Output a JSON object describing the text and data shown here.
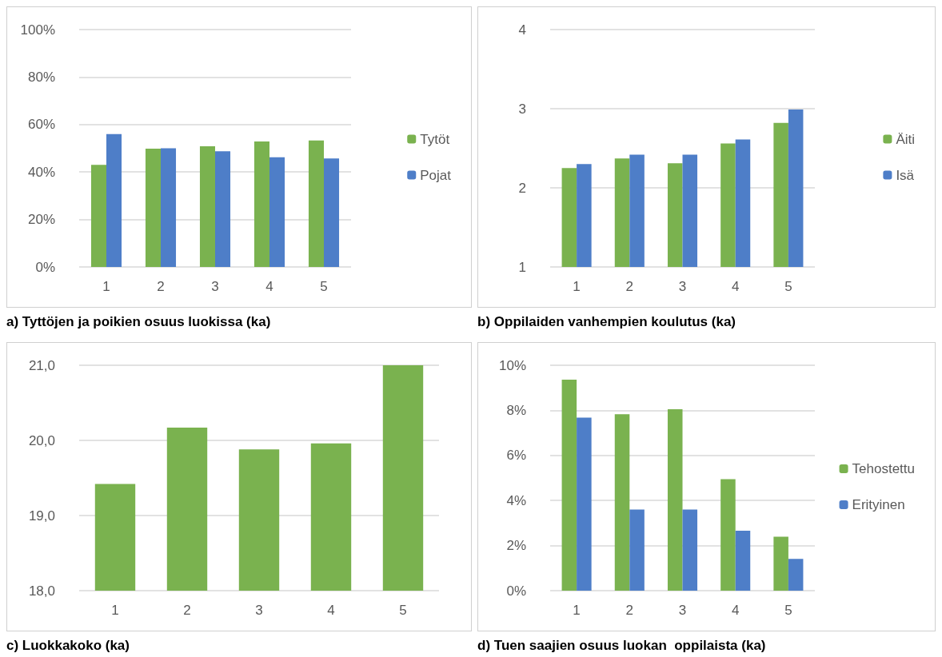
{
  "chart_data": [
    {
      "type": "bar",
      "title": "a) Tyttöjen ja poikien osuus luokissa (ka)",
      "categories": [
        "1",
        "2",
        "3",
        "4",
        "5"
      ],
      "series": [
        {
          "name": "Tytöt",
          "color": "#7ab24f",
          "values": [
            43.0,
            49.8,
            50.8,
            52.9,
            53.3
          ]
        },
        {
          "name": "Pojat",
          "color": "#4e7ec8",
          "values": [
            56.0,
            50.0,
            48.7,
            46.2,
            45.7
          ]
        }
      ],
      "ylim": [
        0,
        100
      ],
      "yticks": [
        {
          "value": 0,
          "label": "0%"
        },
        {
          "value": 20,
          "label": "20%"
        },
        {
          "value": 40,
          "label": "40%"
        },
        {
          "value": 60,
          "label": "60%"
        },
        {
          "value": 80,
          "label": "80%"
        },
        {
          "value": 100,
          "label": "100%"
        }
      ],
      "grid": "y",
      "legend": "right"
    },
    {
      "type": "bar",
      "title": "b) Oppilaiden vanhempien koulutus (ka)",
      "categories": [
        "1",
        "2",
        "3",
        "4",
        "5"
      ],
      "series": [
        {
          "name": "Äiti",
          "color": "#7ab24f",
          "values": [
            2.25,
            2.37,
            2.31,
            2.56,
            2.82
          ]
        },
        {
          "name": "Isä",
          "color": "#4e7ec8",
          "values": [
            2.3,
            2.42,
            2.42,
            2.61,
            2.99
          ]
        }
      ],
      "ylim": [
        1,
        4
      ],
      "yticks": [
        1,
        2,
        3,
        4
      ],
      "grid": "y",
      "legend": "right"
    },
    {
      "type": "bar",
      "title": "c) Luokkakoko (ka)",
      "categories": [
        "1",
        "2",
        "3",
        "4",
        "5"
      ],
      "series": [
        {
          "color": "#7ab24f",
          "values": [
            19.42,
            20.17,
            19.88,
            19.96,
            21.0
          ]
        }
      ],
      "ylim": [
        18,
        21
      ],
      "yticks": [
        {
          "value": 18,
          "label": "18,0"
        },
        {
          "value": 19,
          "label": "19,0"
        },
        {
          "value": 20,
          "label": "20,0"
        },
        {
          "value": 21,
          "label": "21,0"
        }
      ],
      "grid": "y"
    },
    {
      "type": "bar",
      "title": "d) Tuen saajien osuus luokan  oppilaista (ka)",
      "categories": [
        "1",
        "2",
        "3",
        "4",
        "5"
      ],
      "series": [
        {
          "name": "Tehostettu",
          "color": "#7ab24f",
          "values": [
            9.36,
            7.83,
            8.05,
            4.95,
            2.39
          ]
        },
        {
          "name": "Erityinen",
          "color": "#4e7ec8",
          "values": [
            7.68,
            3.6,
            3.6,
            2.66,
            1.41
          ]
        }
      ],
      "ylim": [
        0,
        10
      ],
      "yticks": [
        {
          "value": 0,
          "label": "0%"
        },
        {
          "value": 2,
          "label": "2%"
        },
        {
          "value": 4,
          "label": "4%"
        },
        {
          "value": 6,
          "label": "6%"
        },
        {
          "value": 8,
          "label": "8%"
        },
        {
          "value": 10,
          "label": "10%"
        }
      ],
      "grid": "y",
      "legend": "right"
    }
  ]
}
